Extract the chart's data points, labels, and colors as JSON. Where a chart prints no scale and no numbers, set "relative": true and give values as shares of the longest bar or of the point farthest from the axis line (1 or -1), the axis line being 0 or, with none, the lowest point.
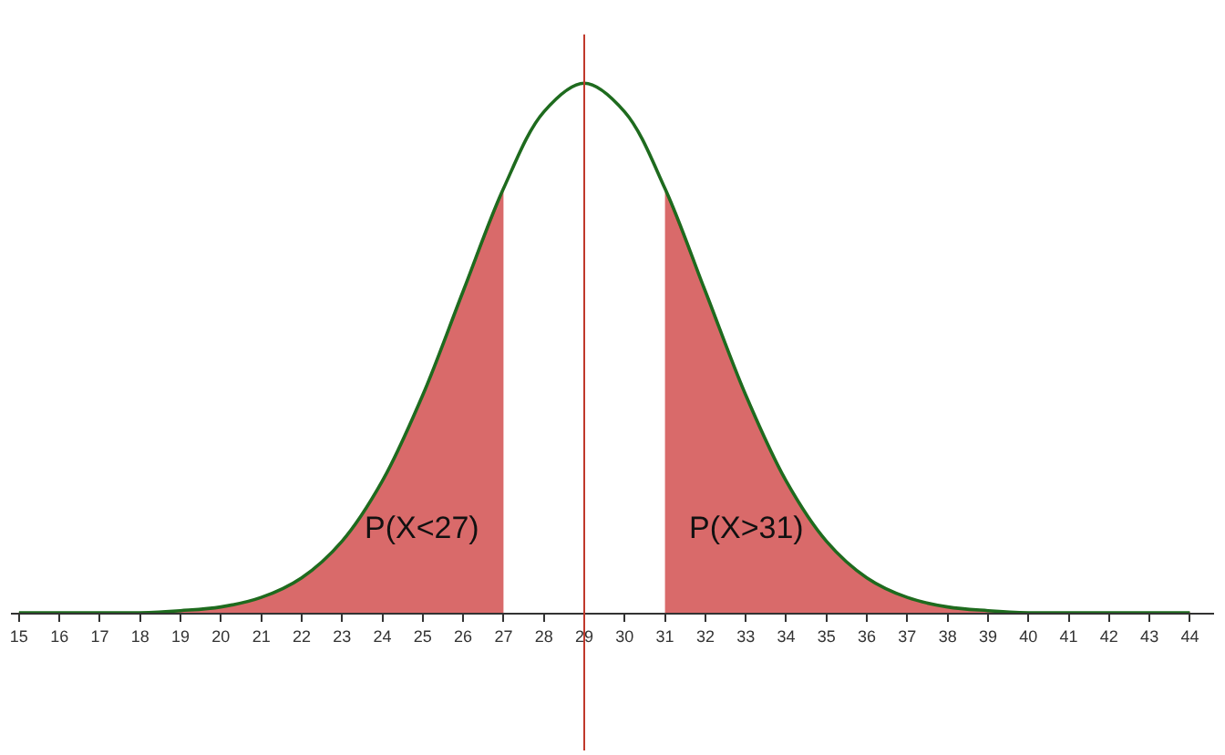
{
  "chart_data": {
    "type": "area",
    "relative": true,
    "tick_labels": "x",
    "marker": "none",
    "xlim": [
      14.8,
      44.6
    ],
    "xticks": [
      15,
      16,
      17,
      18,
      19,
      20,
      21,
      22,
      23,
      24,
      25,
      26,
      27,
      28,
      29,
      30,
      31,
      32,
      33,
      34,
      35,
      36,
      37,
      38,
      39,
      40,
      41,
      42,
      43,
      44
    ],
    "series": [
      {
        "color": "#d96a6a",
        "x": [
          15,
          16,
          17,
          18,
          19,
          20,
          21,
          22,
          23,
          24,
          25,
          26,
          27
        ],
        "values": [
          0,
          0,
          0,
          0,
          0.004,
          0.011,
          0.029,
          0.066,
          0.135,
          0.249,
          0.411,
          0.607,
          0.801
        ]
      },
      {
        "color": "#d96a6a",
        "x": [
          31,
          32,
          33,
          34,
          35,
          36,
          37,
          38,
          39,
          40,
          41,
          42,
          43,
          44
        ],
        "values": [
          0.801,
          0.607,
          0.411,
          0.249,
          0.135,
          0.066,
          0.029,
          0.011,
          0.004,
          0,
          0,
          0,
          0,
          0
        ]
      },
      {
        "type": "line",
        "color": "#1e6b1e",
        "x": [
          15,
          16,
          17,
          18,
          19,
          20,
          21,
          22,
          23,
          24,
          25,
          26,
          27,
          28,
          29,
          30,
          31,
          32,
          33,
          34,
          35,
          36,
          37,
          38,
          39,
          40,
          41,
          42,
          43,
          44
        ],
        "values": [
          0,
          0,
          0,
          0,
          0.004,
          0.011,
          0.029,
          0.066,
          0.135,
          0.249,
          0.411,
          0.607,
          0.801,
          0.946,
          1,
          0.946,
          0.801,
          0.607,
          0.411,
          0.249,
          0.135,
          0.066,
          0.029,
          0.011,
          0.004,
          0,
          0,
          0,
          0,
          0
        ]
      }
    ],
    "ref_lines": [
      {
        "axis": "x",
        "value": 29,
        "color": "#c0392b"
      }
    ],
    "annotations": [
      "P(X<27)",
      "P(X>31)"
    ]
  }
}
